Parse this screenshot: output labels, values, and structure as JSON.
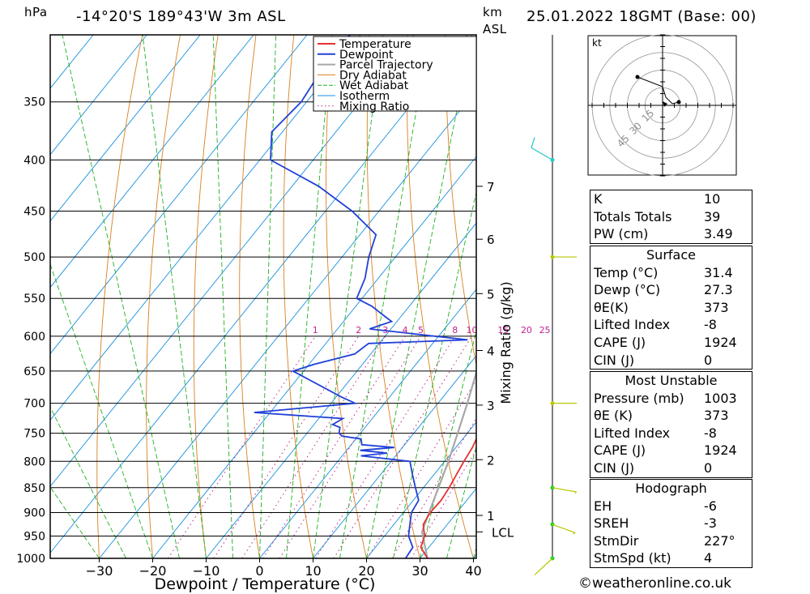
{
  "header": {
    "pressure_unit": "hPa",
    "height_unit": "km",
    "height_ref": "ASL",
    "location": "-14°20'S  189°43'W  3m  ASL",
    "datetime": "25.01.2022  18GMT  (Base: 00)"
  },
  "chart_data": {
    "type": "line",
    "chart_kind": "Skew-T log-P diagram",
    "xlabel": "Dewpoint / Temperature (°C)",
    "ylabel": "",
    "x_ticks": [
      -30,
      -20,
      -10,
      0,
      10,
      20,
      30,
      40
    ],
    "y_ticks": [
      1000,
      950,
      900,
      850,
      800,
      750,
      700,
      650,
      600,
      550,
      500,
      450,
      400,
      350
    ],
    "ylim": [
      1000,
      300
    ],
    "y_scale": "log",
    "grid": true,
    "legend_position": "top-right",
    "legend": [
      "Temperature",
      "Dewpoint",
      "Parcel Trajectory",
      "Dry Adiabat",
      "Wet Adiabat",
      "Isotherm",
      "Mixing Ratio"
    ],
    "colors": {
      "temperature": "#e83030",
      "dewpoint": "#2040d8",
      "parcel": "#a8a8a8",
      "dry_adiabat": "#d88020",
      "wet_adiabat": "#20b020",
      "isotherm": "#1890e0",
      "mixing_ratio": "#c0208c",
      "wind": "#b8c800"
    },
    "km_ticks": [
      {
        "label": "1",
        "p": 906
      },
      {
        "label": "2",
        "p": 797
      },
      {
        "label": "3",
        "p": 703
      },
      {
        "label": "4",
        "p": 620
      },
      {
        "label": "5",
        "p": 544
      },
      {
        "label": "6",
        "p": 480
      },
      {
        "label": "7",
        "p": 425
      },
      {
        "label": "LCL",
        "p": 941
      }
    ],
    "mixing_ratio_label": "Mixing Ratio (g/kg)",
    "mixing_ratio_values": [
      "1",
      "2",
      "3",
      "4",
      "5",
      "8",
      "10",
      "15",
      "20",
      "25"
    ],
    "series": [
      {
        "name": "Temperature",
        "points": [
          [
            1000,
            31.4
          ],
          [
            975,
            28.5
          ],
          [
            950,
            27.5
          ],
          [
            925,
            25.5
          ],
          [
            900,
            25
          ],
          [
            875,
            25.2
          ],
          [
            850,
            24.8
          ],
          [
            825,
            24.2
          ],
          [
            800,
            23.6
          ],
          [
            775,
            23.1
          ],
          [
            750,
            22.2
          ],
          [
            725,
            20.9
          ],
          [
            700,
            19.4
          ],
          [
            675,
            18.3
          ],
          [
            650,
            16.9
          ],
          [
            625,
            15.5
          ],
          [
            600,
            12.5
          ],
          [
            575,
            11.1
          ],
          [
            550,
            9.1
          ],
          [
            525,
            6.5
          ],
          [
            500,
            3.6
          ],
          [
            475,
            0.5
          ],
          [
            450,
            -3.2
          ],
          [
            425,
            -7.2
          ],
          [
            400,
            -11.3
          ],
          [
            375,
            -14.3
          ],
          [
            360,
            -16.4
          ]
        ]
      },
      {
        "name": "Dewpoint",
        "points": [
          [
            1000,
            27.3
          ],
          [
            975,
            27
          ],
          [
            950,
            24.5
          ],
          [
            925,
            23
          ],
          [
            900,
            21.5
          ],
          [
            875,
            21
          ],
          [
            850,
            18.5
          ],
          [
            825,
            16
          ],
          [
            800,
            13.5
          ],
          [
            790,
            3.5
          ],
          [
            785,
            8
          ],
          [
            780,
            2.5
          ],
          [
            775,
            8.5
          ],
          [
            770,
            2
          ],
          [
            760,
            1
          ],
          [
            755,
            -3
          ],
          [
            750,
            -4
          ],
          [
            740,
            -4.7
          ],
          [
            735,
            -6.5
          ],
          [
            725,
            -5.5
          ],
          [
            715,
            -23
          ],
          [
            700,
            -5.5
          ],
          [
            690,
            -9
          ],
          [
            650,
            -22
          ],
          [
            640,
            -19
          ],
          [
            625,
            -13
          ],
          [
            610,
            -12
          ],
          [
            605,
            6
          ],
          [
            590,
            -14
          ],
          [
            580,
            -11
          ],
          [
            575,
            -12.5
          ],
          [
            560,
            -17
          ],
          [
            555,
            -19
          ],
          [
            550,
            -21
          ],
          [
            525,
            -22.5
          ],
          [
            500,
            -25
          ],
          [
            475,
            -27
          ],
          [
            450,
            -35
          ],
          [
            425,
            -45
          ],
          [
            400,
            -58
          ],
          [
            375,
            -62
          ],
          [
            350,
            -61
          ],
          [
            325,
            -62
          ],
          [
            300,
            -62
          ]
        ]
      },
      {
        "name": "Parcel Trajectory",
        "points": [
          [
            1000,
            31.4
          ],
          [
            941,
            26.4
          ],
          [
            900,
            24.8
          ],
          [
            850,
            22.8
          ],
          [
            800,
            20.7
          ],
          [
            750,
            18.2
          ],
          [
            700,
            15.5
          ],
          [
            650,
            12.4
          ],
          [
            600,
            8.9
          ],
          [
            550,
            4.9
          ],
          [
            500,
            0.3
          ],
          [
            450,
            -5.1
          ],
          [
            400,
            -11.6
          ],
          [
            365,
            -16.8
          ]
        ]
      }
    ]
  },
  "hodograph": {
    "unit": "kt",
    "rings": [
      "15",
      "30",
      "45"
    ]
  },
  "wind_profile": [
    {
      "p": 1000,
      "dir": 227,
      "spd": 4
    },
    {
      "p": 925,
      "dir": 110,
      "spd": 10
    },
    {
      "p": 850,
      "dir": 100,
      "spd": 15
    },
    {
      "p": 700,
      "dir": 90,
      "spd": 5
    },
    {
      "p": 500,
      "dir": 90,
      "spd": 5
    },
    {
      "p": 400,
      "dir": 300,
      "spd": 10
    }
  ],
  "indices": {
    "rows": [
      {
        "k": "K",
        "v": "10"
      },
      {
        "k": "Totals Totals",
        "v": "39"
      },
      {
        "k": "PW (cm)",
        "v": "3.49"
      }
    ]
  },
  "surface": {
    "title": "Surface",
    "rows": [
      {
        "k": "Temp (°C)",
        "v": "31.4"
      },
      {
        "k": "Dewp (°C)",
        "v": "27.3"
      },
      {
        "k": "θE(K)",
        "v": "373"
      },
      {
        "k": "Lifted Index",
        "v": "-8"
      },
      {
        "k": "CAPE (J)",
        "v": "1924"
      },
      {
        "k": "CIN (J)",
        "v": "0"
      }
    ]
  },
  "most_unstable": {
    "title": "Most Unstable",
    "rows": [
      {
        "k": "Pressure (mb)",
        "v": "1003"
      },
      {
        "k": "θE (K)",
        "v": "373"
      },
      {
        "k": "Lifted Index",
        "v": "-8"
      },
      {
        "k": "CAPE (J)",
        "v": "1924"
      },
      {
        "k": "CIN (J)",
        "v": "0"
      }
    ]
  },
  "hodo_table": {
    "title": "Hodograph",
    "rows": [
      {
        "k": "EH",
        "v": "-6"
      },
      {
        "k": "SREH",
        "v": "-3"
      },
      {
        "k": "StmDir",
        "v": "227°"
      },
      {
        "k": "StmSpd (kt)",
        "v": "4"
      }
    ]
  },
  "credit": "©weatheronline.co.uk"
}
